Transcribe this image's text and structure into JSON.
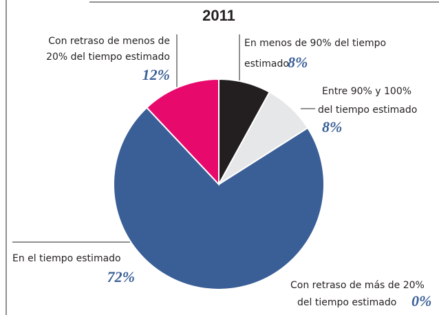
{
  "chart_data": {
    "type": "pie",
    "title": "2011",
    "categories": [
      [
        "En menos de 90% del tiempo",
        "estimado"
      ],
      [
        "Entre 90% y 100%",
        "del tiempo estimado"
      ],
      [
        "En el tiempo estimado"
      ],
      [
        "Con retraso de menos de",
        "20% del tiempo estimado"
      ],
      [
        "Con retraso de más de 20%",
        "del tiempo estimado"
      ]
    ],
    "values": [
      8,
      8,
      72,
      12,
      0
    ],
    "value_labels": [
      "8%",
      "8%",
      "72%",
      "12%",
      "0%"
    ],
    "colors": [
      "#231f20",
      "#e6e7e8",
      "#3a5f96",
      "#e8096d",
      "#f7941d"
    ]
  }
}
